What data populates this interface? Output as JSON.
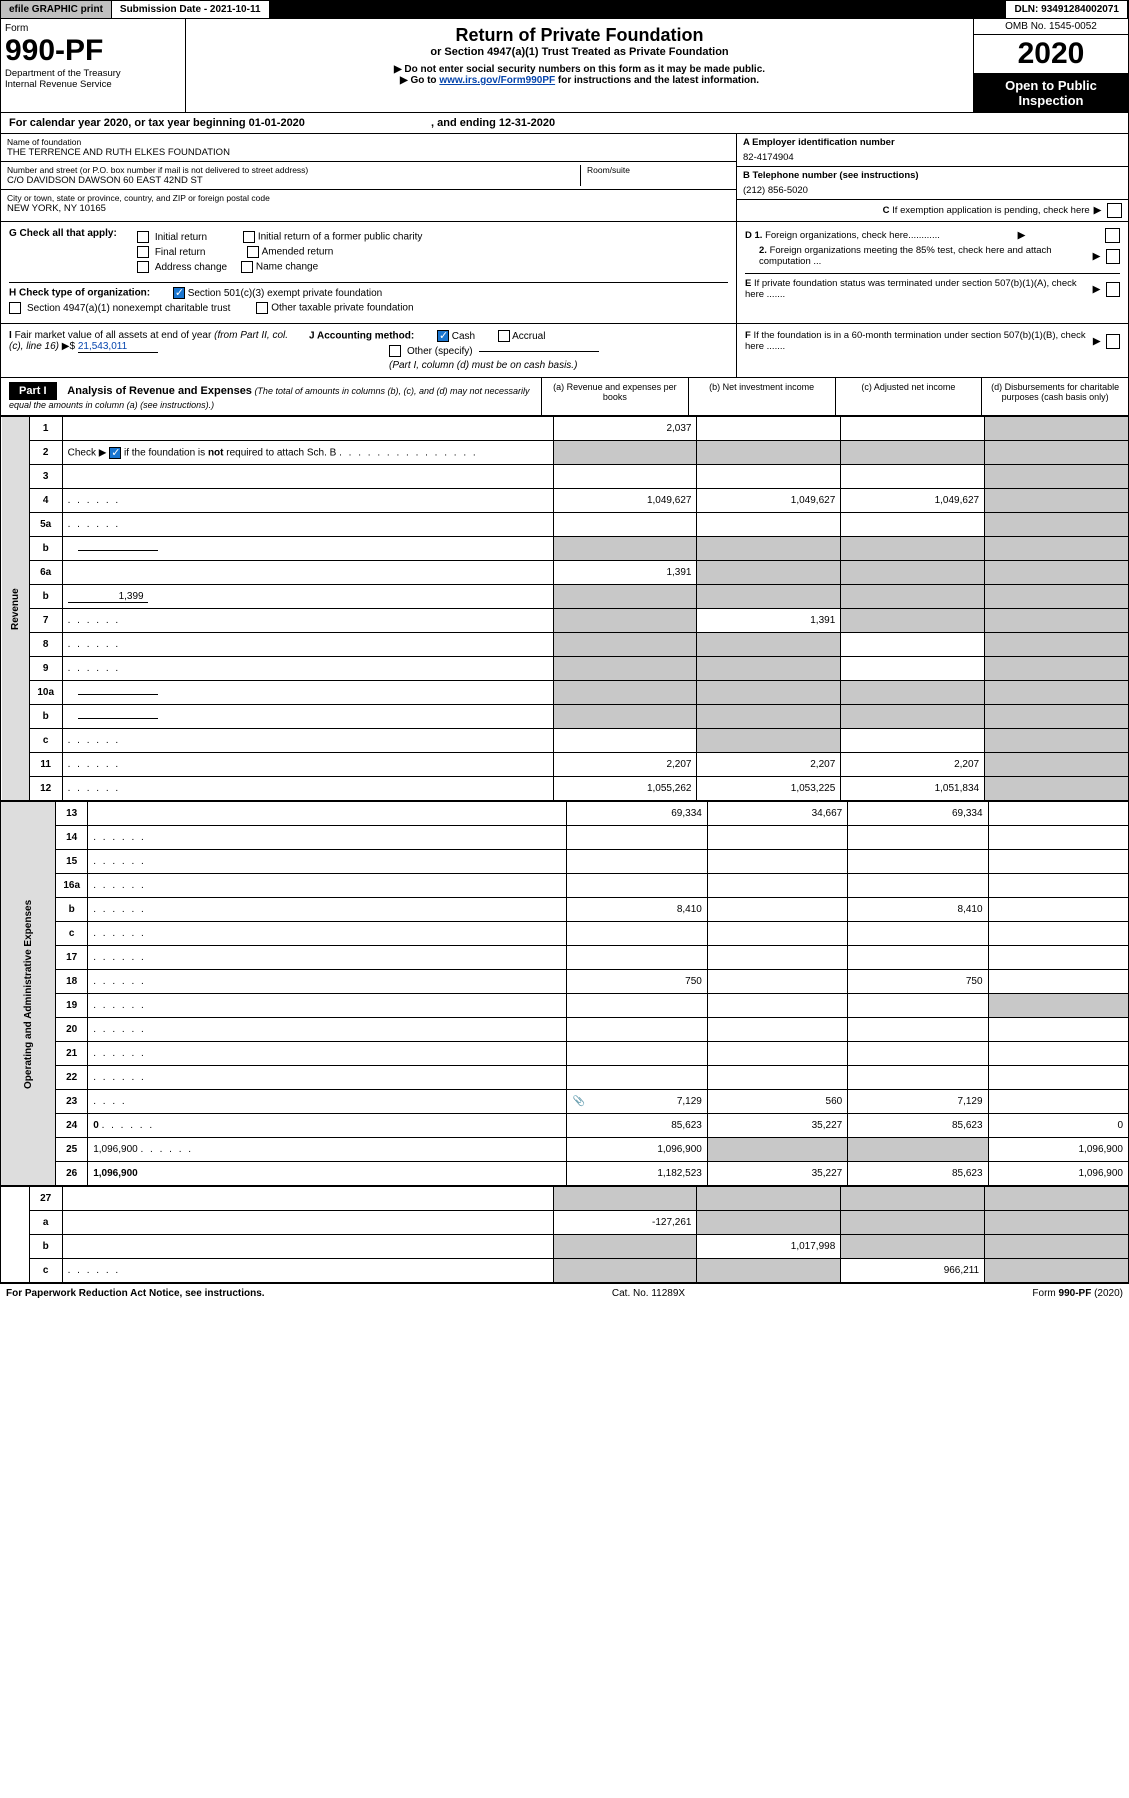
{
  "topbar": {
    "efile": "efile GRAPHIC print",
    "submission": "Submission Date - 2021-10-11",
    "dln": "DLN: 93491284002071"
  },
  "header": {
    "form_label": "Form",
    "form_num": "990-PF",
    "dept1": "Department of the Treasury",
    "dept2": "Internal Revenue Service",
    "title": "Return of Private Foundation",
    "subtitle": "or Section 4947(a)(1) Trust Treated as Private Foundation",
    "note1": "▶ Do not enter social security numbers on this form as it may be made public.",
    "note2_pre": "▶ Go to ",
    "note2_link": "www.irs.gov/Form990PF",
    "note2_post": " for instructions and the latest information.",
    "omb": "OMB No. 1545-0052",
    "year": "2020",
    "open1": "Open to Public",
    "open2": "Inspection"
  },
  "cal_year": {
    "pre": "For calendar year 2020, or tax year beginning 01-01-2020",
    "mid": ", and ending 12-31-2020"
  },
  "info": {
    "name_label": "Name of foundation",
    "name": "THE TERRENCE AND RUTH ELKES FOUNDATION",
    "addr_label": "Number and street (or P.O. box number if mail is not delivered to street address)",
    "addr": "C/O DAVIDSON DAWSON 60 EAST 42ND ST",
    "room_label": "Room/suite",
    "city_label": "City or town, state or province, country, and ZIP or foreign postal code",
    "city": "NEW YORK, NY  10165",
    "ein_label": "A Employer identification number",
    "ein": "82-4174904",
    "phone_label": "B Telephone number (see instructions)",
    "phone": "(212) 856-5020",
    "c_label": "C If exemption application is pending, check here"
  },
  "checks": {
    "g_label": "G Check all that apply:",
    "g_opts": [
      "Initial return",
      "Initial return of a former public charity",
      "Final return",
      "Amended return",
      "Address change",
      "Name change"
    ],
    "h_label": "H Check type of organization:",
    "h_opt1": "Section 501(c)(3) exempt private foundation",
    "h_opt2": "Section 4947(a)(1) nonexempt charitable trust",
    "h_opt3": "Other taxable private foundation",
    "d1": "D 1. Foreign organizations, check here............",
    "d2": "2. Foreign organizations meeting the 85% test, check here and attach computation ...",
    "e": "E  If private foundation status was terminated under section 507(b)(1)(A), check here ......."
  },
  "ij": {
    "i_label": "I Fair market value of all assets at end of year (from Part II, col. (c), line 16)",
    "i_val_pre": "▶$  ",
    "i_val": "21,543,011",
    "j_label": "J Accounting method:",
    "j_cash": "Cash",
    "j_accrual": "Accrual",
    "j_other": "Other (specify)",
    "j_note": "(Part I, column (d) must be on cash basis.)",
    "f": "F  If the foundation is in a 60-month termination under section 507(b)(1)(B), check here ......."
  },
  "part1": {
    "label": "Part I",
    "title": "Analysis of Revenue and Expenses",
    "sub": " (The total of amounts in columns (b), (c), and (d) may not necessarily equal the amounts in column (a) (see instructions).)",
    "col_a": "(a)   Revenue and expenses per books",
    "col_b": "(b)   Net investment income",
    "col_c": "(c)   Adjusted net income",
    "col_d": "(d)   Disbursements for charitable purposes (cash basis only)"
  },
  "side": {
    "rev": "Revenue",
    "exp": "Operating and Administrative Expenses"
  },
  "lines": [
    {
      "n": "1",
      "d": "",
      "a": "2,037",
      "b": "",
      "c": "",
      "shade": [
        "d"
      ]
    },
    {
      "n": "2",
      "d": "",
      "a": "",
      "b": "",
      "c": "",
      "shade": [
        "a",
        "b",
        "c",
        "d"
      ],
      "dot": true,
      "check2": true
    },
    {
      "n": "3",
      "d": "",
      "a": "",
      "b": "",
      "c": "",
      "shade": [
        "d"
      ]
    },
    {
      "n": "4",
      "d": "",
      "a": "1,049,627",
      "b": "1,049,627",
      "c": "1,049,627",
      "shade": [
        "d"
      ],
      "dot": true
    },
    {
      "n": "5a",
      "d": "",
      "a": "",
      "b": "",
      "c": "",
      "shade": [
        "d"
      ],
      "dot": true
    },
    {
      "n": "b",
      "d": "",
      "a": "",
      "b": "",
      "c": "",
      "shade": [
        "a",
        "b",
        "c",
        "d"
      ],
      "inset": true
    },
    {
      "n": "6a",
      "d": "",
      "a": "1,391",
      "b": "",
      "c": "",
      "shade": [
        "b",
        "c",
        "d"
      ]
    },
    {
      "n": "b",
      "d": "",
      "a": "",
      "b": "",
      "c": "",
      "shade": [
        "a",
        "b",
        "c",
        "d"
      ],
      "inset": true,
      "inline_val": "1,399"
    },
    {
      "n": "7",
      "d": "",
      "a": "",
      "b": "1,391",
      "c": "",
      "shade": [
        "a",
        "c",
        "d"
      ],
      "dot": true
    },
    {
      "n": "8",
      "d": "",
      "a": "",
      "b": "",
      "c": "",
      "shade": [
        "a",
        "b",
        "d"
      ],
      "dot": true
    },
    {
      "n": "9",
      "d": "",
      "a": "",
      "b": "",
      "c": "",
      "shade": [
        "a",
        "b",
        "d"
      ],
      "dot": true
    },
    {
      "n": "10a",
      "d": "",
      "a": "",
      "b": "",
      "c": "",
      "shade": [
        "a",
        "b",
        "c",
        "d"
      ],
      "inset": true
    },
    {
      "n": "b",
      "d": "",
      "a": "",
      "b": "",
      "c": "",
      "shade": [
        "a",
        "b",
        "c",
        "d"
      ],
      "inset": true,
      "dot": true
    },
    {
      "n": "c",
      "d": "",
      "a": "",
      "b": "",
      "c": "",
      "shade": [
        "b",
        "d"
      ],
      "dot": true
    },
    {
      "n": "11",
      "d": "",
      "a": "2,207",
      "b": "2,207",
      "c": "2,207",
      "shade": [
        "d"
      ],
      "dot": true
    },
    {
      "n": "12",
      "d": "",
      "a": "1,055,262",
      "b": "1,053,225",
      "c": "1,051,834",
      "shade": [
        "d"
      ],
      "bold": true,
      "dot": true
    }
  ],
  "exp_lines": [
    {
      "n": "13",
      "d": "",
      "a": "69,334",
      "b": "34,667",
      "c": "69,334"
    },
    {
      "n": "14",
      "d": "",
      "a": "",
      "b": "",
      "c": "",
      "dot": true
    },
    {
      "n": "15",
      "d": "",
      "a": "",
      "b": "",
      "c": "",
      "dot": true
    },
    {
      "n": "16a",
      "d": "",
      "a": "",
      "b": "",
      "c": "",
      "dot": true
    },
    {
      "n": "b",
      "d": "",
      "a": "8,410",
      "b": "",
      "c": "8,410",
      "dot": true
    },
    {
      "n": "c",
      "d": "",
      "a": "",
      "b": "",
      "c": "",
      "dot": true
    },
    {
      "n": "17",
      "d": "",
      "a": "",
      "b": "",
      "c": "",
      "dot": true
    },
    {
      "n": "18",
      "d": "",
      "a": "750",
      "b": "",
      "c": "750",
      "dot": true
    },
    {
      "n": "19",
      "d": "",
      "a": "",
      "b": "",
      "c": "",
      "shade": [
        "d"
      ],
      "dot": true
    },
    {
      "n": "20",
      "d": "",
      "a": "",
      "b": "",
      "c": "",
      "dot": true
    },
    {
      "n": "21",
      "d": "",
      "a": "",
      "b": "",
      "c": "",
      "dot": true
    },
    {
      "n": "22",
      "d": "",
      "a": "",
      "b": "",
      "c": "",
      "dot": true
    },
    {
      "n": "23",
      "d": "",
      "a": "7,129",
      "b": "560",
      "c": "7,129",
      "dot": true,
      "icon": true
    },
    {
      "n": "24",
      "d": "0",
      "a": "85,623",
      "b": "35,227",
      "c": "85,623",
      "bold": true,
      "dot": true,
      "tworow": true
    },
    {
      "n": "25",
      "d": "1,096,900",
      "a": "1,096,900",
      "b": "",
      "c": "",
      "shade": [
        "b",
        "c"
      ],
      "dot": true
    },
    {
      "n": "26",
      "d": "1,096,900",
      "a": "1,182,523",
      "b": "35,227",
      "c": "85,623",
      "bold": true
    }
  ],
  "bottom_lines": [
    {
      "n": "27",
      "d": "",
      "a": "",
      "b": "",
      "c": "",
      "shade": [
        "a",
        "b",
        "c",
        "d"
      ]
    },
    {
      "n": "a",
      "d": "",
      "a": "-127,261",
      "b": "",
      "c": "",
      "shade": [
        "b",
        "c",
        "d"
      ],
      "bold": true
    },
    {
      "n": "b",
      "d": "",
      "a": "",
      "b": "1,017,998",
      "c": "",
      "shade": [
        "a",
        "c",
        "d"
      ],
      "bold": true
    },
    {
      "n": "c",
      "d": "",
      "a": "",
      "b": "",
      "c": "966,211",
      "shade": [
        "a",
        "b",
        "d"
      ],
      "bold": true,
      "dot": true
    }
  ],
  "footer": {
    "left": "For Paperwork Reduction Act Notice, see instructions.",
    "center": "Cat. No. 11289X",
    "right": "Form 990-PF (2020)"
  }
}
